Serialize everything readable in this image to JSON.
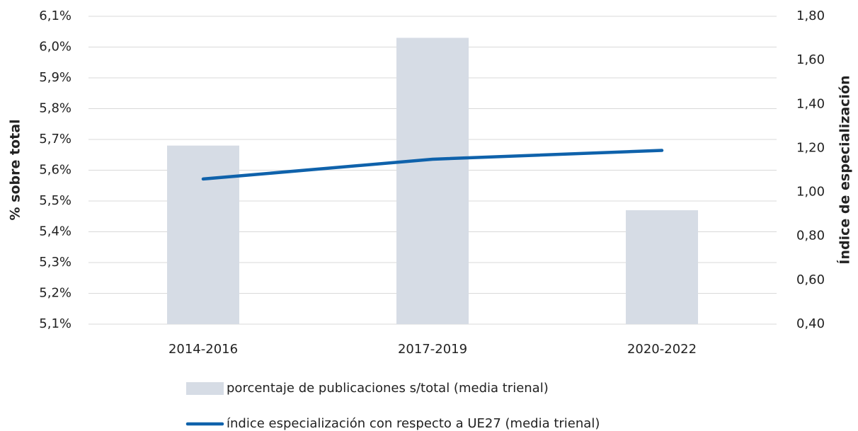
{
  "chart_data": {
    "type": "bar",
    "categories": [
      "2014-2016",
      "2017-2019",
      "2020-2022"
    ],
    "series": [
      {
        "name": "porcentaje de publicaciones s/total (media trienal)",
        "type": "bar",
        "color": "#d6dce5",
        "axis": "y",
        "values": [
          5.68,
          6.03,
          5.47
        ]
      },
      {
        "name": "índice especialización con respecto a UE27 (media trienal)",
        "type": "line",
        "color": "#0f62ab",
        "axis": "y2",
        "values": [
          1.06,
          1.15,
          1.19
        ]
      }
    ],
    "ylabel": "% sobre total",
    "y2label": "Índice de especialización",
    "ylim": [
      5.1,
      6.1
    ],
    "yticks": [
      {
        "value": 5.1,
        "label": "5,1%"
      },
      {
        "value": 5.2,
        "label": "5,2%"
      },
      {
        "value": 5.3,
        "label": "5,3%"
      },
      {
        "value": 5.4,
        "label": "5,4%"
      },
      {
        "value": 5.5,
        "label": "5,5%"
      },
      {
        "value": 5.6,
        "label": "5,6%"
      },
      {
        "value": 5.7,
        "label": "5,7%"
      },
      {
        "value": 5.8,
        "label": "5,8%"
      },
      {
        "value": 5.9,
        "label": "5,9%"
      },
      {
        "value": 6.0,
        "label": "6,0%"
      },
      {
        "value": 6.1,
        "label": "6,1%"
      }
    ],
    "y2lim": [
      0.4,
      1.8
    ],
    "y2ticks": [
      {
        "value": 0.4,
        "label": "0,40"
      },
      {
        "value": 0.6,
        "label": "0,60"
      },
      {
        "value": 0.8,
        "label": "0,80"
      },
      {
        "value": 1.0,
        "label": "1,00"
      },
      {
        "value": 1.2,
        "label": "1,20"
      },
      {
        "value": 1.4,
        "label": "1,40"
      },
      {
        "value": 1.6,
        "label": "1,60"
      },
      {
        "value": 1.8,
        "label": "1,80"
      }
    ],
    "grid": true,
    "legend": "bottom"
  }
}
